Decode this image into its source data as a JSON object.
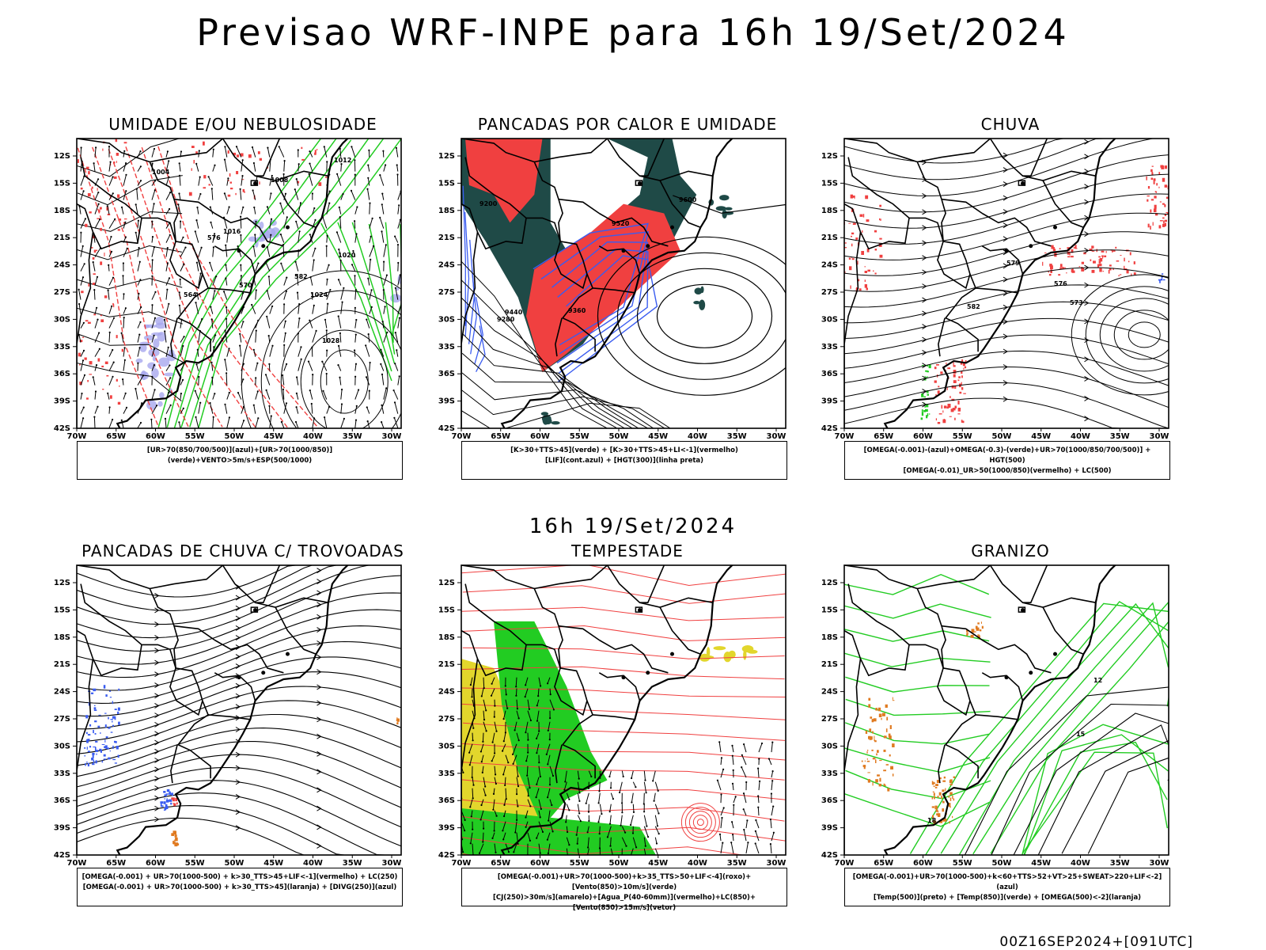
{
  "header": {
    "title": "Previsao WRF-INPE  para 16h 19/Set/2024",
    "mid_title": "16h 19/Set/2024",
    "footer": "00Z16SEP2024+[091UTC]"
  },
  "axes": {
    "lat_ticks": [
      "12S",
      "15S",
      "18S",
      "21S",
      "24S",
      "27S",
      "30S",
      "33S",
      "36S",
      "39S",
      "42S"
    ],
    "lon_ticks": [
      "70W",
      "65W",
      "60W",
      "55W",
      "50W",
      "45W",
      "40W",
      "35W",
      "30W"
    ]
  },
  "panels": [
    {
      "id": "umidade",
      "title": "UMIDADE E/OU NEBULOSIDADE",
      "legend": [
        "[UR>70(850/700/500)](azul)+[UR>70(1000/850)](verde)+VENTO>5m/s+ESP(500/1000)"
      ],
      "contour_labels": [
        "1004",
        "1008",
        "1012",
        "1016",
        "1020",
        "1024",
        "1028",
        "564",
        "570",
        "576",
        "582"
      ]
    },
    {
      "id": "pancadas-calor",
      "title": "PANCADAS POR CALOR E UMIDADE",
      "legend": [
        "[K>30+TTS>45](verde) + [K>30+TTS>45+LI<-1](vermelho)",
        "[LIF](cont.azul) + [HGT(300)](linha preta)"
      ],
      "contour_labels": [
        "9200",
        "9280",
        "9360",
        "9440",
        "9520",
        "9600"
      ]
    },
    {
      "id": "chuva",
      "title": "CHUVA",
      "legend": [
        "[OMEGA(-0.001)-(azul)+OMEGA(-0.3)-(verde)+UR>70(1000/850/700/500)] + HGT(500)",
        "[OMEGA(-0.01)_UR>50(1000/850)(vermelho) + LC(500)"
      ],
      "contour_labels": [
        "573",
        "576",
        "579",
        "582"
      ]
    },
    {
      "id": "pancadas-trovoadas",
      "title": "PANCADAS DE CHUVA C/ TROVOADAS",
      "legend": [
        "[OMEGA(-0.001) + UR>70(1000-500) + k>30_TTS>45+LIF<-1](vermelho) + LC(250)",
        "[OMEGA(-0.001) + UR>70(1000-500) + k>30_TTS>45](laranja) + [DIVG(250)](azul)"
      ],
      "contour_labels": []
    },
    {
      "id": "tempestade",
      "title": "TEMPESTADE",
      "legend": [
        "[OMEGA(-0.001)+UR>70(1000-500)+k>35_TTS>50+LIF<-4](roxo)+[Vento(850)>10m/s](verde)",
        "[CJ(250)>30m/s](amarelo)+[Agua_P(40-60mm)](vermelho)+LC(850)+[Vento(850)>15m/s](vetor)"
      ],
      "contour_labels": []
    },
    {
      "id": "granizo",
      "title": "GRANIZO",
      "legend": [
        "[OMEGA(-0.001)+UR>70(1000-500)+k<60+TTS>52+VT>25+SWEAT>220+LIF<-2](azul)",
        "[Temp(500)](preto) + [Temp(850)](verde) + [OMEGA(500)<-2](laranja)"
      ],
      "contour_labels": [
        "12",
        "15",
        "18"
      ]
    }
  ],
  "colors": {
    "red": "#f04040",
    "green": "#22cc22",
    "blue": "#3a5cf0",
    "lavender": "#a8a8ee",
    "darkteal": "#1f4a47",
    "yellow": "#e2d62c",
    "orange": "#e07a20"
  }
}
